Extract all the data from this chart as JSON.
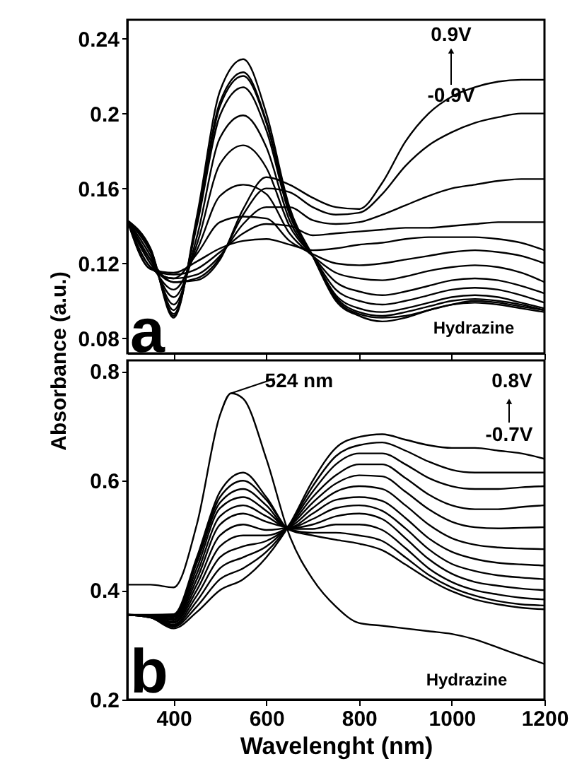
{
  "chart_data": [
    {
      "type": "line",
      "ylabel": "Absorbance (a.u.)",
      "tick_labels": "y",
      "xlim": [
        300,
        1200
      ],
      "xticks": [
        400,
        600,
        800,
        1000,
        1200
      ],
      "ylim": [
        0.072,
        0.25
      ],
      "yticks": [
        0.08,
        0.12,
        0.16,
        0.2,
        0.24
      ],
      "annotations": [
        "0.9V",
        "-0.9V",
        "Hydrazine",
        "a"
      ],
      "x": [
        300,
        350,
        400,
        450,
        500,
        550,
        600,
        650,
        700,
        750,
        800,
        850,
        900,
        950,
        1000,
        1050,
        1100,
        1150,
        1200
      ],
      "series": [
        {
          "color": "#000000",
          "values": [
            0.143,
            0.128,
            0.091,
            0.145,
            0.212,
            0.229,
            0.2,
            0.15,
            0.124,
            0.1,
            0.092,
            0.089,
            0.091,
            0.095,
            0.098,
            0.099,
            0.098,
            0.096,
            0.094
          ]
        },
        {
          "color": "#000000",
          "values": [
            0.143,
            0.128,
            0.092,
            0.143,
            0.206,
            0.222,
            0.196,
            0.148,
            0.124,
            0.101,
            0.093,
            0.091,
            0.092,
            0.095,
            0.098,
            0.1,
            0.099,
            0.097,
            0.095
          ]
        },
        {
          "color": "#000000",
          "values": [
            0.143,
            0.127,
            0.093,
            0.142,
            0.204,
            0.22,
            0.195,
            0.147,
            0.124,
            0.102,
            0.094,
            0.092,
            0.094,
            0.097,
            0.1,
            0.101,
            0.1,
            0.098,
            0.095
          ]
        },
        {
          "color": "#000000",
          "values": [
            0.143,
            0.126,
            0.095,
            0.14,
            0.199,
            0.214,
            0.191,
            0.146,
            0.124,
            0.103,
            0.096,
            0.094,
            0.096,
            0.099,
            0.102,
            0.103,
            0.102,
            0.099,
            0.096
          ]
        },
        {
          "color": "#000000",
          "values": [
            0.143,
            0.124,
            0.098,
            0.134,
            0.187,
            0.199,
            0.182,
            0.143,
            0.124,
            0.106,
            0.1,
            0.098,
            0.1,
            0.103,
            0.106,
            0.107,
            0.106,
            0.103,
            0.099
          ]
        },
        {
          "color": "#000000",
          "values": [
            0.143,
            0.122,
            0.102,
            0.13,
            0.173,
            0.183,
            0.171,
            0.14,
            0.124,
            0.11,
            0.105,
            0.103,
            0.105,
            0.108,
            0.111,
            0.112,
            0.111,
            0.108,
            0.104
          ]
        },
        {
          "color": "#000000",
          "values": [
            0.143,
            0.12,
            0.106,
            0.127,
            0.156,
            0.162,
            0.157,
            0.136,
            0.124,
            0.115,
            0.112,
            0.111,
            0.113,
            0.116,
            0.118,
            0.119,
            0.118,
            0.115,
            0.11
          ]
        },
        {
          "color": "#000000",
          "values": [
            0.143,
            0.118,
            0.112,
            0.125,
            0.142,
            0.145,
            0.144,
            0.132,
            0.125,
            0.12,
            0.119,
            0.12,
            0.122,
            0.124,
            0.126,
            0.127,
            0.126,
            0.124,
            0.12
          ]
        },
        {
          "color": "#000000",
          "values": [
            0.143,
            0.117,
            0.115,
            0.121,
            0.128,
            0.132,
            0.133,
            0.13,
            0.127,
            0.128,
            0.13,
            0.131,
            0.133,
            0.134,
            0.134,
            0.134,
            0.133,
            0.131,
            0.127
          ]
        },
        {
          "color": "#000000",
          "values": [
            0.143,
            0.117,
            0.114,
            0.117,
            0.126,
            0.136,
            0.141,
            0.14,
            0.135,
            0.136,
            0.137,
            0.138,
            0.139,
            0.139,
            0.14,
            0.141,
            0.142,
            0.142,
            0.142
          ]
        },
        {
          "color": "#000000",
          "values": [
            0.143,
            0.118,
            0.112,
            0.114,
            0.124,
            0.141,
            0.15,
            0.15,
            0.143,
            0.141,
            0.142,
            0.146,
            0.151,
            0.156,
            0.16,
            0.162,
            0.164,
            0.165,
            0.165
          ]
        },
        {
          "color": "#000000",
          "values": [
            0.143,
            0.12,
            0.11,
            0.112,
            0.123,
            0.146,
            0.16,
            0.158,
            0.15,
            0.146,
            0.147,
            0.157,
            0.172,
            0.183,
            0.19,
            0.195,
            0.198,
            0.2,
            0.2
          ]
        },
        {
          "color": "#000000",
          "values": [
            0.143,
            0.122,
            0.11,
            0.111,
            0.122,
            0.149,
            0.166,
            0.162,
            0.155,
            0.15,
            0.149,
            0.163,
            0.185,
            0.2,
            0.209,
            0.214,
            0.217,
            0.218,
            0.218
          ]
        }
      ]
    },
    {
      "type": "line",
      "xlabel": "Wavelenght (nm)",
      "xlim": [
        300,
        1200
      ],
      "xticks": [
        400,
        600,
        800,
        1000,
        1200
      ],
      "ylim": [
        0.2,
        0.82
      ],
      "yticks": [
        0.2,
        0.4,
        0.6,
        0.8
      ],
      "annotations": [
        {
          "text": "524 nm",
          "x": 524,
          "y": 0.76
        },
        "0.8V",
        "-0.7V",
        "Hydrazine",
        "b"
      ],
      "x": [
        300,
        350,
        400,
        450,
        500,
        550,
        600,
        650,
        700,
        750,
        800,
        850,
        900,
        950,
        1000,
        1050,
        1100,
        1150,
        1200
      ],
      "series": [
        {
          "color": "#000000",
          "x": [
            300,
            350,
            400,
            450,
            500,
            524,
            550,
            600,
            650,
            700,
            750,
            800,
            850,
            900,
            950,
            1000,
            1050,
            1100,
            1150,
            1200
          ],
          "values": [
            0.41,
            0.41,
            0.405,
            0.52,
            0.72,
            0.76,
            0.75,
            0.64,
            0.5,
            0.42,
            0.37,
            0.34,
            0.335,
            0.33,
            0.325,
            0.32,
            0.31,
            0.295,
            0.28,
            0.265
          ]
        },
        {
          "color": "#000000",
          "values": [
            0.355,
            0.35,
            0.33,
            0.36,
            0.4,
            0.42,
            0.46,
            0.52,
            0.6,
            0.66,
            0.68,
            0.685,
            0.675,
            0.665,
            0.66,
            0.66,
            0.655,
            0.65,
            0.64
          ]
        },
        {
          "color": "#000000",
          "values": [
            0.355,
            0.35,
            0.333,
            0.37,
            0.42,
            0.44,
            0.47,
            0.52,
            0.59,
            0.645,
            0.665,
            0.67,
            0.655,
            0.635,
            0.62,
            0.615,
            0.615,
            0.615,
            0.615
          ]
        },
        {
          "color": "#000000",
          "values": [
            0.355,
            0.35,
            0.335,
            0.38,
            0.44,
            0.46,
            0.48,
            0.52,
            0.58,
            0.63,
            0.65,
            0.65,
            0.63,
            0.605,
            0.59,
            0.585,
            0.585,
            0.588,
            0.59
          ]
        },
        {
          "color": "#000000",
          "values": [
            0.355,
            0.351,
            0.337,
            0.39,
            0.46,
            0.48,
            0.49,
            0.518,
            0.57,
            0.61,
            0.63,
            0.63,
            0.605,
            0.575,
            0.555,
            0.548,
            0.548,
            0.552,
            0.555
          ]
        },
        {
          "color": "#000000",
          "values": [
            0.355,
            0.351,
            0.34,
            0.4,
            0.48,
            0.5,
            0.5,
            0.517,
            0.56,
            0.595,
            0.61,
            0.608,
            0.58,
            0.548,
            0.525,
            0.515,
            0.513,
            0.514,
            0.515
          ]
        },
        {
          "color": "#000000",
          "values": [
            0.355,
            0.352,
            0.342,
            0.41,
            0.5,
            0.52,
            0.51,
            0.516,
            0.55,
            0.58,
            0.59,
            0.585,
            0.555,
            0.52,
            0.495,
            0.483,
            0.478,
            0.476,
            0.475
          ]
        },
        {
          "color": "#000000",
          "values": [
            0.355,
            0.352,
            0.345,
            0.42,
            0.52,
            0.54,
            0.525,
            0.515,
            0.54,
            0.565,
            0.57,
            0.563,
            0.532,
            0.495,
            0.47,
            0.457,
            0.45,
            0.447,
            0.445
          ]
        },
        {
          "color": "#000000",
          "values": [
            0.355,
            0.353,
            0.347,
            0.43,
            0.535,
            0.555,
            0.535,
            0.514,
            0.53,
            0.55,
            0.555,
            0.545,
            0.513,
            0.475,
            0.448,
            0.435,
            0.427,
            0.423,
            0.42
          ]
        },
        {
          "color": "#000000",
          "values": [
            0.355,
            0.353,
            0.35,
            0.44,
            0.55,
            0.57,
            0.545,
            0.513,
            0.52,
            0.535,
            0.54,
            0.53,
            0.495,
            0.457,
            0.43,
            0.415,
            0.408,
            0.403,
            0.4
          ]
        },
        {
          "color": "#000000",
          "values": [
            0.355,
            0.354,
            0.352,
            0.45,
            0.56,
            0.585,
            0.555,
            0.512,
            0.512,
            0.52,
            0.52,
            0.51,
            0.477,
            0.44,
            0.415,
            0.4,
            0.392,
            0.386,
            0.383
          ]
        },
        {
          "color": "#000000",
          "values": [
            0.355,
            0.354,
            0.354,
            0.455,
            0.57,
            0.6,
            0.565,
            0.511,
            0.505,
            0.505,
            0.5,
            0.49,
            0.46,
            0.428,
            0.405,
            0.39,
            0.38,
            0.374,
            0.372
          ]
        },
        {
          "color": "#000000",
          "values": [
            0.355,
            0.355,
            0.356,
            0.46,
            0.58,
            0.615,
            0.57,
            0.51,
            0.5,
            0.492,
            0.485,
            0.473,
            0.447,
            0.42,
            0.398,
            0.383,
            0.374,
            0.368,
            0.365
          ]
        }
      ]
    }
  ]
}
